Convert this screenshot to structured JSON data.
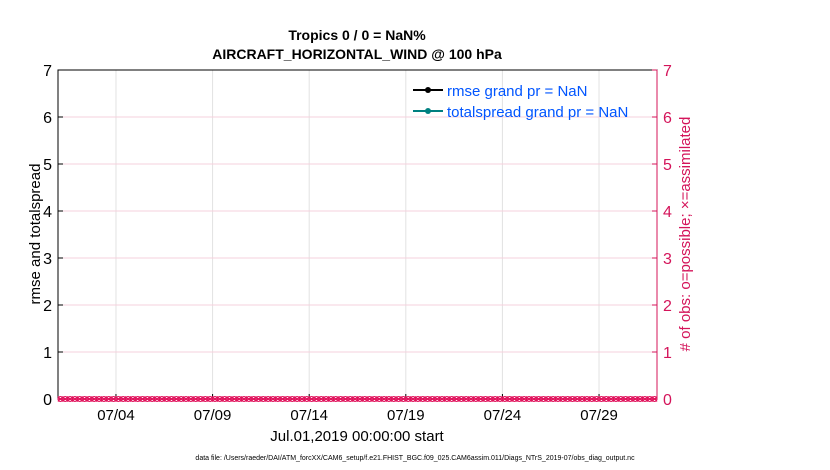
{
  "chart_data": {
    "type": "line",
    "title": [
      "Tropics 0 / 0 = NaN%",
      "AIRCRAFT_HORIZONTAL_WIND @ 100 hPa"
    ],
    "xlabel": "Jul.01,2019 00:00:00 start",
    "ylabel_left": "rmse and totalspread",
    "ylabel_right": "# of obs: o=possible; ×=assimilated",
    "xlim": [
      "2019-07-01",
      "2019-08-01"
    ],
    "ylim_left": [
      0,
      7
    ],
    "ylim_right": [
      0,
      7
    ],
    "x_ticks": [
      "07/04",
      "07/09",
      "07/14",
      "07/19",
      "07/24",
      "07/29"
    ],
    "x_tick_dates": [
      "2019-07-04",
      "2019-07-09",
      "2019-07-14",
      "2019-07-19",
      "2019-07-24",
      "2019-07-29"
    ],
    "y_ticks_left": [
      "0",
      "1",
      "2",
      "3",
      "4",
      "5",
      "6",
      "7"
    ],
    "y_ticks_right": [
      "0",
      "1",
      "2",
      "3",
      "4",
      "5",
      "6",
      "7"
    ],
    "grid": true,
    "legend_position": "top-right",
    "series": [
      {
        "name": "rmse grand pr = NaN",
        "color": "#000000",
        "values": "NaN"
      },
      {
        "name": "totalspread grand pr = NaN",
        "color": "#008080",
        "values": "NaN"
      },
      {
        "name": "possible",
        "axis": "right",
        "marker": "o",
        "color": "#e0105a",
        "interval_hours": 6,
        "value": 0
      },
      {
        "name": "assimilated",
        "axis": "right",
        "marker": "x",
        "color": "#e0105a",
        "interval_hours": 6,
        "value": 0
      }
    ],
    "colors": {
      "right_axis": "#d4145a",
      "legend_text": "#0055ff"
    }
  },
  "footer": "data file: /Users/raeder/DAI/ATM_forcXX/CAM6_setup/f.e21.FHIST_BGC.f09_025.CAM6assim.011/Diags_NTrS_2019-07/obs_diag_output.nc"
}
